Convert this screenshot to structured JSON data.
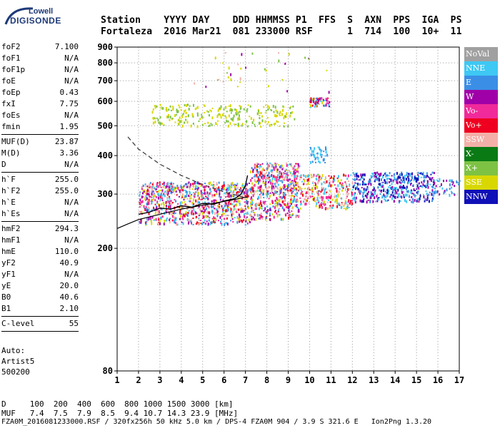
{
  "logo": {
    "line1": "Lowell",
    "line2": "DIGISONDE"
  },
  "header": {
    "labels": "Station    YYYY DAY    DDD HHMMSS P1  FFS  S  AXN  PPS  IGA  PS",
    "values": "Fortaleza  2016 Mar21  081 233000 RSF      1  714  100  10+  11"
  },
  "params": {
    "group1": [
      {
        "name": "foF2",
        "value": "7.100"
      },
      {
        "name": "foF1",
        "value": "N/A"
      },
      {
        "name": "foF1p",
        "value": "N/A"
      },
      {
        "name": "foE",
        "value": "N/A"
      },
      {
        "name": "foEp",
        "value": "0.43"
      },
      {
        "name": "fxI",
        "value": "7.75"
      },
      {
        "name": "foEs",
        "value": "N/A"
      },
      {
        "name": "fmin",
        "value": "1.95"
      }
    ],
    "group2": [
      {
        "name": "MUF(D)",
        "value": "23.87"
      },
      {
        "name": "M(D)",
        "value": "3.36"
      },
      {
        "name": "D",
        "value": "N/A"
      }
    ],
    "group3": [
      {
        "name": "h`F",
        "value": "255.0"
      },
      {
        "name": "h`F2",
        "value": "255.0"
      },
      {
        "name": "h`E",
        "value": "N/A"
      },
      {
        "name": "h`Es",
        "value": "N/A"
      }
    ],
    "group4": [
      {
        "name": "hmF2",
        "value": "294.3"
      },
      {
        "name": "hmF1",
        "value": "N/A"
      },
      {
        "name": "hmE",
        "value": "110.0"
      },
      {
        "name": "yF2",
        "value": "40.9"
      },
      {
        "name": "yF1",
        "value": "N/A"
      },
      {
        "name": "yE",
        "value": "20.0"
      },
      {
        "name": "B0",
        "value": "40.6"
      },
      {
        "name": "B1",
        "value": "2.10"
      }
    ],
    "group5": [
      {
        "name": "C-level",
        "value": "55"
      }
    ]
  },
  "auto": {
    "line1": "Auto:",
    "line2": "Artist5",
    "line3": "500200"
  },
  "legend": [
    {
      "label": "NoVal",
      "color": "#a0a0a0"
    },
    {
      "label": "NNE",
      "color": "#3ec8f4"
    },
    {
      "label": "E",
      "color": "#3a8ee6"
    },
    {
      "label": "W",
      "color": "#a000a8"
    },
    {
      "label": "Vo-",
      "color": "#f02a9a"
    },
    {
      "label": "Vo+",
      "color": "#f00020"
    },
    {
      "label": "SSW",
      "color": "#f4b0a8"
    },
    {
      "label": "X-",
      "color": "#0a7a14"
    },
    {
      "label": "X+",
      "color": "#7ec244"
    },
    {
      "label": "SSE",
      "color": "#d8d800"
    },
    {
      "label": "NNW",
      "color": "#1010b8"
    }
  ],
  "footer": {
    "line1": "D     100  200  400  600  800 1000 1500 3000 [km]",
    "line2": "MUF   7.4  7.5  7.9  8.5  9.4 10.7 14.3 23.9 [MHz]",
    "line3": "FZA0M_2016081233000.RSF / 320fx256h 50 kHz 5.0 km / DPS-4 FZA0M 904 / 3.9 S 321.6 E   Ion2Png 1.3.20"
  },
  "chart_data": {
    "type": "scatter",
    "title": "",
    "xlabel": "",
    "ylabel": "",
    "xlim": [
      1,
      17
    ],
    "ylim": [
      80,
      900
    ],
    "y_scale": "log",
    "x_ticks": [
      1,
      2,
      3,
      4,
      5,
      6,
      7,
      8,
      9,
      10,
      11,
      12,
      13,
      14,
      15,
      16,
      17
    ],
    "y_ticks": [
      80,
      200,
      300,
      400,
      500,
      600,
      700,
      800,
      900
    ],
    "grid": true,
    "series": [
      {
        "name": "O trace",
        "color": "#000000",
        "x": [
          2.0,
          2.5,
          3.0,
          3.5,
          4.0,
          4.5,
          5.0,
          5.5,
          6.0,
          6.5,
          6.8,
          7.0,
          7.1
        ],
        "y": [
          258,
          262,
          270,
          268,
          275,
          272,
          280,
          278,
          285,
          290,
          300,
          320,
          345
        ]
      },
      {
        "name": "Profile",
        "color": "#000000",
        "x": [
          1.0,
          1.5,
          2.0,
          3.0,
          4.0,
          5.0,
          6.0,
          6.5,
          7.1
        ],
        "y": [
          232,
          240,
          248,
          258,
          268,
          276,
          284,
          288,
          294
        ]
      },
      {
        "name": "MUF curve",
        "color": "#333333",
        "x": [
          1.5,
          2.0,
          3.0,
          4.0,
          5.0,
          6.0,
          7.0
        ],
        "y": [
          460,
          420,
          375,
          345,
          322,
          305,
          292
        ]
      }
    ]
  }
}
